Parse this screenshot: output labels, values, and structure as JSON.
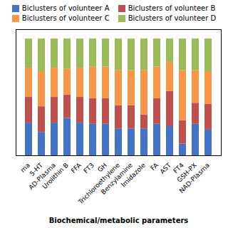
{
  "chart_data": {
    "type": "bar",
    "stacked": true,
    "categories": [
      "ma",
      "5-HT",
      "AD-Plasma",
      "Urolithin B",
      "FFA",
      "FT3",
      "GH",
      "Trichloroethylene",
      "Benzylamine",
      "Imidazole",
      "FA",
      "AST",
      "FT4",
      "GSH-PX",
      "NAD-Plasma"
    ],
    "series": [
      {
        "name": "Biclusters of volunteer A",
        "color": "#4472C4",
        "values": [
          0.28,
          0.2,
          0.28,
          0.32,
          0.28,
          0.27,
          0.27,
          0.23,
          0.23,
          0.23,
          0.27,
          0.25,
          0.1,
          0.27,
          0.22
        ]
      },
      {
        "name": "Biclusters of volunteer B",
        "color": "#C0504D",
        "values": [
          0.22,
          0.22,
          0.22,
          0.2,
          0.22,
          0.22,
          0.22,
          0.2,
          0.2,
          0.12,
          0.22,
          0.3,
          0.2,
          0.18,
          0.22
        ]
      },
      {
        "name": "Biclusters of volunteer C",
        "color": "#F79646",
        "values": [
          0.25,
          0.3,
          0.25,
          0.22,
          0.25,
          0.27,
          0.27,
          0.3,
          0.3,
          0.38,
          0.27,
          0.25,
          0.43,
          0.28,
          0.28
        ]
      },
      {
        "name": "Biclusters of volunteer D",
        "color": "#9BBB59",
        "values": [
          0.25,
          0.28,
          0.25,
          0.26,
          0.25,
          0.24,
          0.24,
          0.27,
          0.27,
          0.27,
          0.24,
          0.2,
          0.27,
          0.27,
          0.28
        ]
      }
    ],
    "xlabel": "Biochemical/metabolic parameters",
    "ylim": [
      0,
      1.08
    ],
    "yticks": [],
    "tick_labels": "x",
    "grid": false,
    "legend": "top"
  }
}
